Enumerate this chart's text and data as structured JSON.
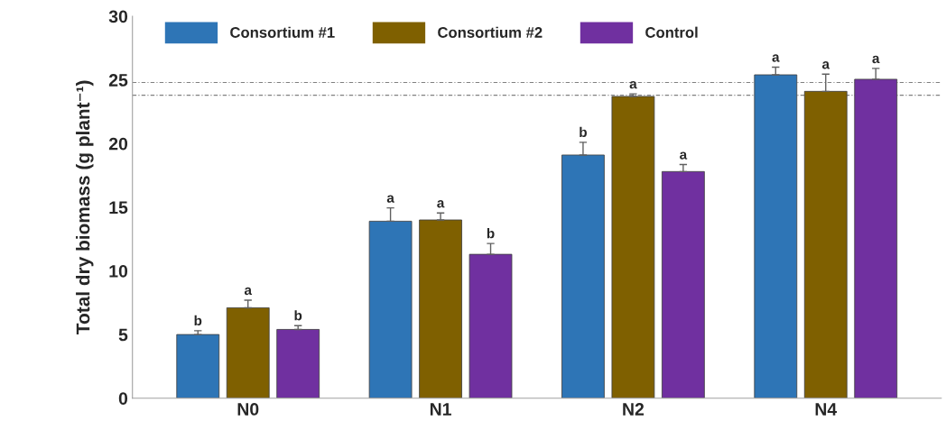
{
  "chart_data": {
    "type": "bar",
    "ylabel": "Total dry biomass (g plant⁻¹)",
    "categories": [
      "N0",
      "N1",
      "N2",
      "N4"
    ],
    "series": [
      {
        "name": "Consortium #1",
        "color": "#2e75b6",
        "values": [
          5.0,
          13.9,
          19.1,
          25.4
        ],
        "errors": [
          0.3,
          1.05,
          1.0,
          0.6
        ],
        "value_labels": [
          "b",
          "a",
          "b",
          "a"
        ]
      },
      {
        "name": "Consortium #2",
        "color": "#7f6000",
        "values": [
          7.1,
          14.0,
          23.7,
          24.1
        ],
        "errors": [
          0.6,
          0.55,
          0.2,
          1.35
        ],
        "value_labels": [
          "a",
          "a",
          "a",
          "a"
        ]
      },
      {
        "name": "Control",
        "color": "#7030a0",
        "values": [
          5.4,
          11.3,
          17.8,
          25.05
        ],
        "errors": [
          0.3,
          0.85,
          0.55,
          0.85
        ],
        "value_labels": [
          "b",
          "b",
          "a",
          "a"
        ]
      }
    ],
    "ylim": [
      0,
      30
    ],
    "yticks": [
      0,
      5,
      10,
      15,
      20,
      25,
      30
    ],
    "legend": "top",
    "ref_lines": [
      {
        "axis": "y",
        "value": 24.8,
        "color": "#808080",
        "line_style": "dotted"
      },
      {
        "axis": "y",
        "value": 23.8,
        "color": "#808080",
        "line_style": "dotted"
      }
    ]
  }
}
